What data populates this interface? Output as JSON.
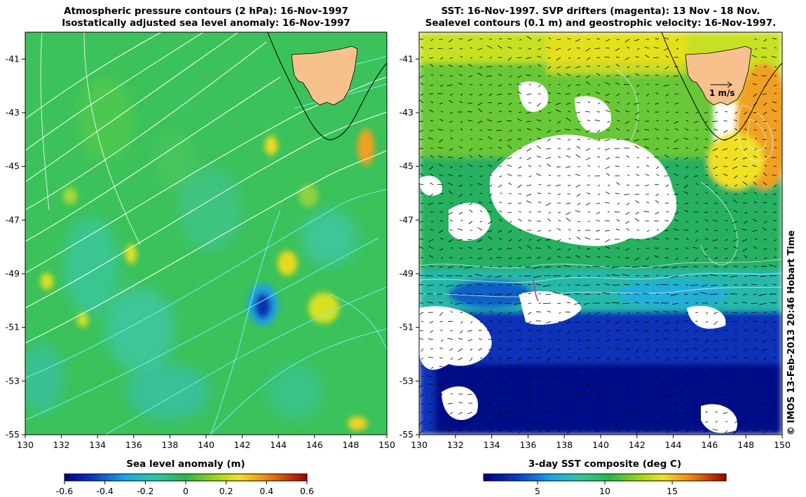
{
  "left_panel": {
    "title_line1": "Atmospheric pressure contours (2 hPa): 16-Nov-1997",
    "title_line2": "Isostatically adjusted sea level anomaly: 16-Nov-1997",
    "colorbar_title": "Sea level anomaly (m)",
    "colorbar_ticks": [
      "-0.6",
      "-0.4",
      "-0.2",
      "0",
      "0.2",
      "0.4",
      "0.6"
    ],
    "colorbar_range": [
      -0.6,
      0.6
    ]
  },
  "right_panel": {
    "title_line1": "SST: 16-Nov-1997. SVP drifters (magenta): 13 Nov - 18 Nov.",
    "title_line2": "Sealevel contours (0.1 m) and geostrophic velocity: 16-Nov-1997.",
    "colorbar_title": "3-day SST composite (deg C)",
    "colorbar_ticks": [
      "5",
      "10",
      "15"
    ],
    "colorbar_tick_values": [
      5,
      10,
      15
    ],
    "colorbar_range": [
      1,
      19
    ],
    "scale_label": "1 m/s"
  },
  "axes": {
    "lon_ticks": [
      "130",
      "132",
      "134",
      "136",
      "138",
      "140",
      "142",
      "144",
      "146",
      "148",
      "150"
    ],
    "lat_ticks": [
      "-41",
      "-43",
      "-45",
      "-47",
      "-49",
      "-51",
      "-53",
      "-55"
    ],
    "lon_range": [
      130,
      150
    ],
    "lat_range": [
      -55,
      -40
    ]
  },
  "credit": "© IMOS 13-Feb-2013 20:46 Hobart Time",
  "colors": {
    "land": "#f7c18d",
    "sla_background": "#3cc25a",
    "sst_cold": "#1020a0",
    "sst_warm": "#f0a020",
    "pressure_contour": "#ffffff",
    "drifter": "#d020d0"
  }
}
